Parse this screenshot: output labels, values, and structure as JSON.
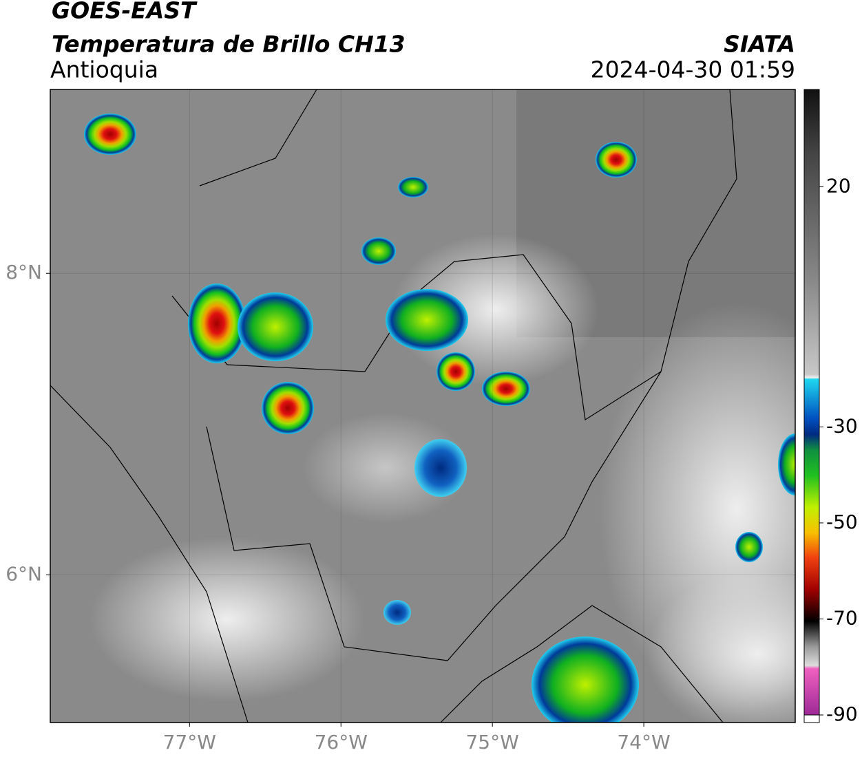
{
  "header": {
    "title": "GOES-EAST",
    "subtitle": "Temperatura de Brillo CH13",
    "region": "Antioquia",
    "source": "SIATA",
    "datetime": "2024-04-30 01:59"
  },
  "map": {
    "lon_lim": [
      -77.92,
      -73.0
    ],
    "lat_lim": [
      5.02,
      9.22
    ],
    "lon_ticks": [
      {
        "value": -77,
        "label": "77°W"
      },
      {
        "value": -76,
        "label": "76°W"
      },
      {
        "value": -75,
        "label": "75°W"
      },
      {
        "value": -74,
        "label": "74°W"
      }
    ],
    "lat_ticks": [
      {
        "value": 8,
        "label": "8°N"
      },
      {
        "value": 6,
        "label": "6°N"
      }
    ],
    "grid": true
  },
  "colorbar": {
    "lim": [
      -90,
      40
    ],
    "ticks": [
      20,
      -30,
      -50,
      -70,
      -90
    ]
  }
}
